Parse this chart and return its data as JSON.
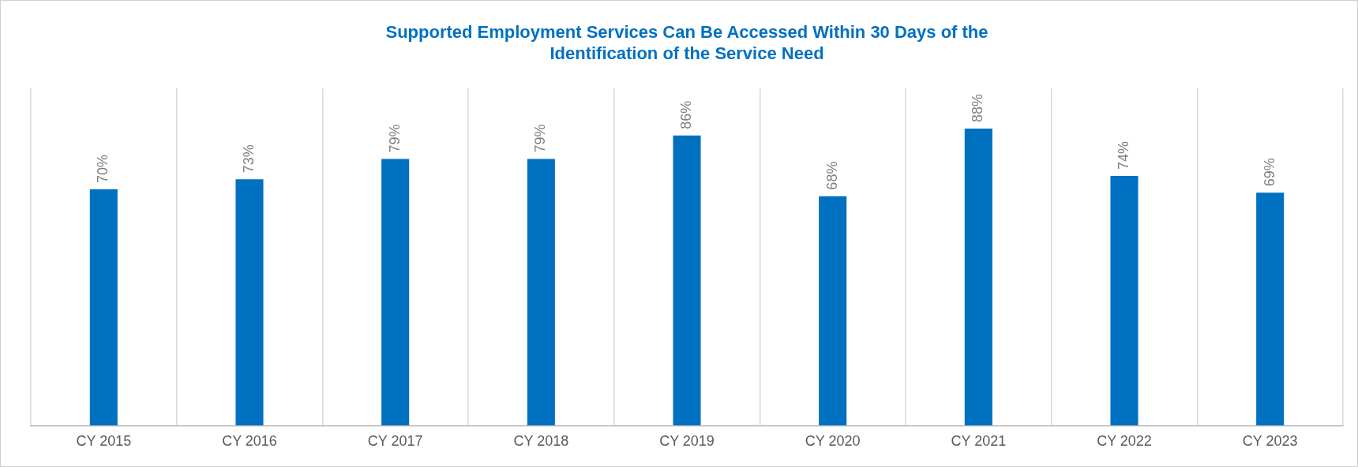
{
  "chart_data": {
    "type": "bar",
    "title": "Supported Employment Services Can Be Accessed Within 30 Days of the\nIdentification of the Service Need",
    "categories": [
      "CY 2015",
      "CY 2016",
      "CY 2017",
      "CY 2018",
      "CY 2019",
      "CY 2020",
      "CY 2021",
      "CY 2022",
      "CY 2023"
    ],
    "values": [
      70,
      73,
      79,
      79,
      86,
      68,
      88,
      74,
      69
    ],
    "value_labels": [
      "70%",
      "73%",
      "79%",
      "79%",
      "86%",
      "68%",
      "88%",
      "74%",
      "69%"
    ],
    "color": "#0070c0",
    "ylim": [
      0,
      100
    ],
    "grid": "x",
    "tick_labels": "x",
    "legend": false
  }
}
